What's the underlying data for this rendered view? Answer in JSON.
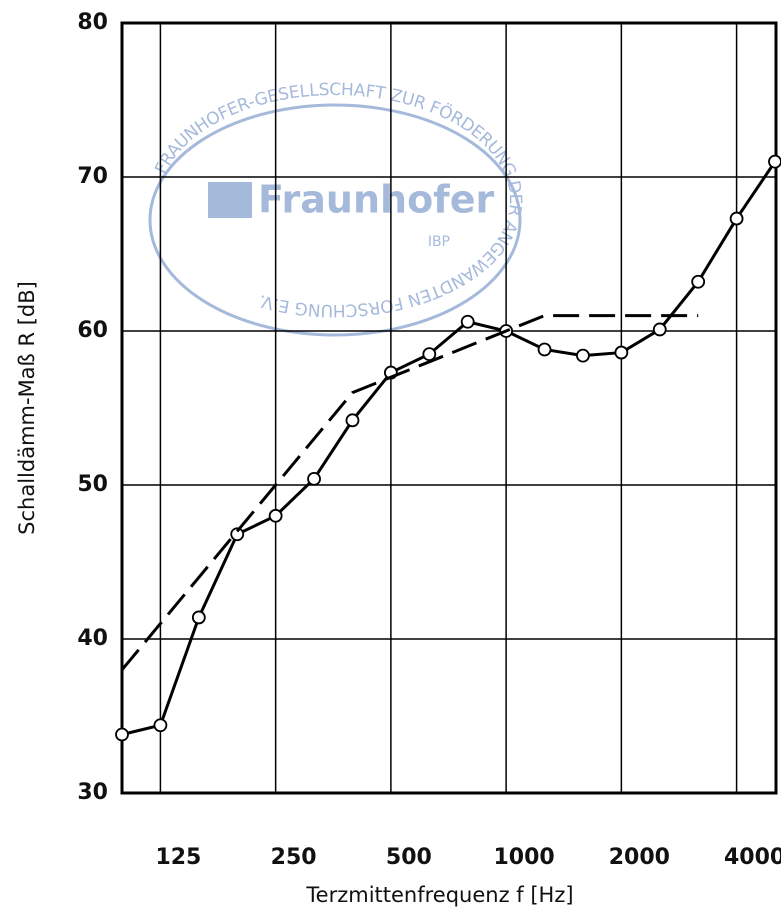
{
  "chart_data": {
    "type": "line",
    "xlabel": "Terzmittenfrequenz f [Hz]",
    "ylabel": "Schalldämm-Maß R [dB]",
    "categories": [
      null,
      "125",
      null,
      null,
      "250",
      null,
      null,
      "500",
      null,
      null,
      "1000",
      null,
      null,
      "2000",
      null,
      null,
      "4000",
      null
    ],
    "series": [
      {
        "color": "#000000",
        "line": "solid",
        "markers": true,
        "values": [
          33.8,
          34.4,
          41.4,
          46.8,
          48.0,
          50.4,
          54.2,
          57.3,
          58.5,
          60.6,
          60.0,
          58.8,
          58.4,
          58.6,
          60.1,
          63.2,
          67.3,
          71.0
        ]
      },
      {
        "color": "#000000",
        "line": "dashed",
        "markers": false,
        "values": [
          38,
          41,
          44,
          47,
          50,
          53,
          56,
          57,
          58,
          59,
          60,
          61,
          61,
          61,
          61,
          61,
          null,
          null
        ]
      }
    ],
    "ylim": [
      30,
      80
    ],
    "yticks": [
      30,
      40,
      50,
      60,
      70,
      80
    ],
    "grid": true
  },
  "stamp": {
    "title": "Fraunhofer",
    "subtitle": "IBP",
    "ring": "FRAUNHOFER-GESELLSCHAFT ZUR FÖRDERUNG DER ANGEWANDTEN FORSCHUNG E.V."
  }
}
